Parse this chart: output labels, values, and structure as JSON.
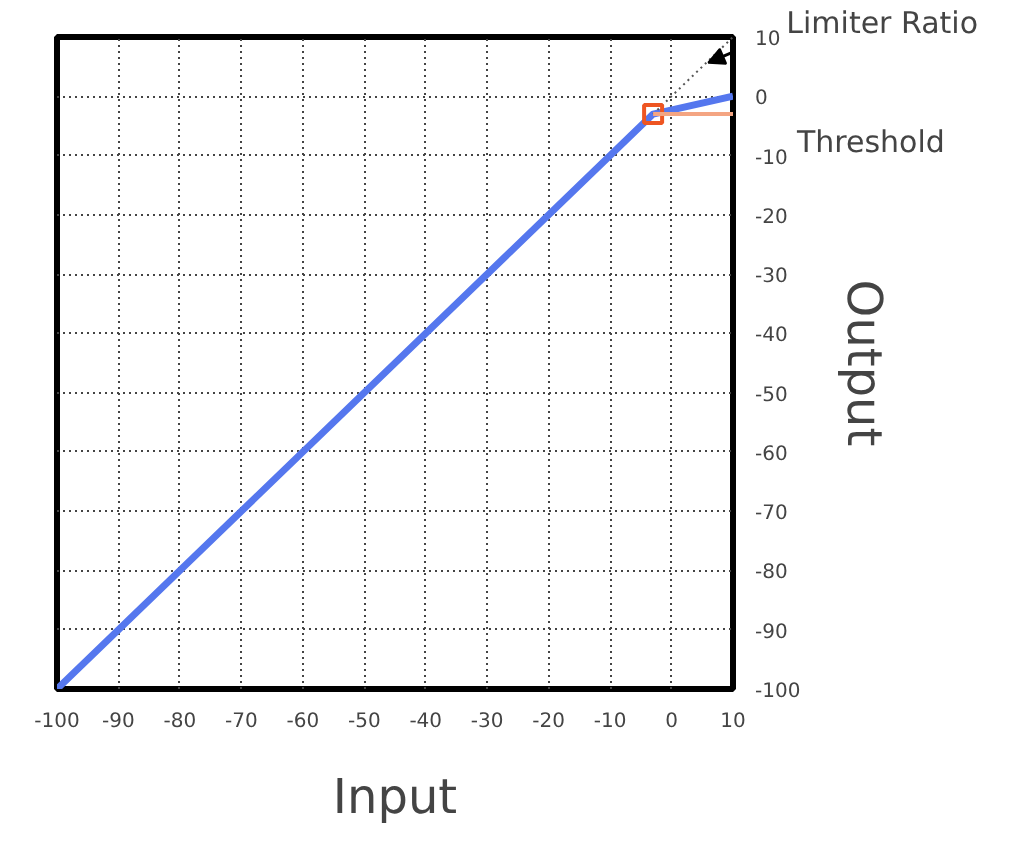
{
  "chart_data": {
    "type": "line",
    "xlabel": "Input",
    "ylabel": "Output",
    "x": [
      -100,
      -3,
      10
    ],
    "series": [
      {
        "color": "#5577ee",
        "values": [
          -100,
          -3,
          0
        ]
      },
      {
        "color": "#555555",
        "x": [
          -3,
          10
        ],
        "values": [
          -3,
          10
        ],
        "line_style": "dotted"
      }
    ],
    "xlim": [
      -100,
      10
    ],
    "ylim": [
      -100,
      10
    ],
    "xticks": [
      -100,
      -90,
      -80,
      -70,
      -60,
      -50,
      -40,
      -30,
      -20,
      -10,
      0,
      10
    ],
    "yticks": [
      -100,
      -90,
      -80,
      -70,
      -60,
      -50,
      -40,
      -30,
      -20,
      -10,
      0,
      10
    ],
    "grid": true,
    "ref_lines": [
      {
        "axis": "y",
        "value": -3,
        "color": "#f4a582",
        "label": "Threshold"
      }
    ],
    "annotations": [
      {
        "text": "Limiter Ratio",
        "x": 5,
        "y": 5
      }
    ]
  }
}
